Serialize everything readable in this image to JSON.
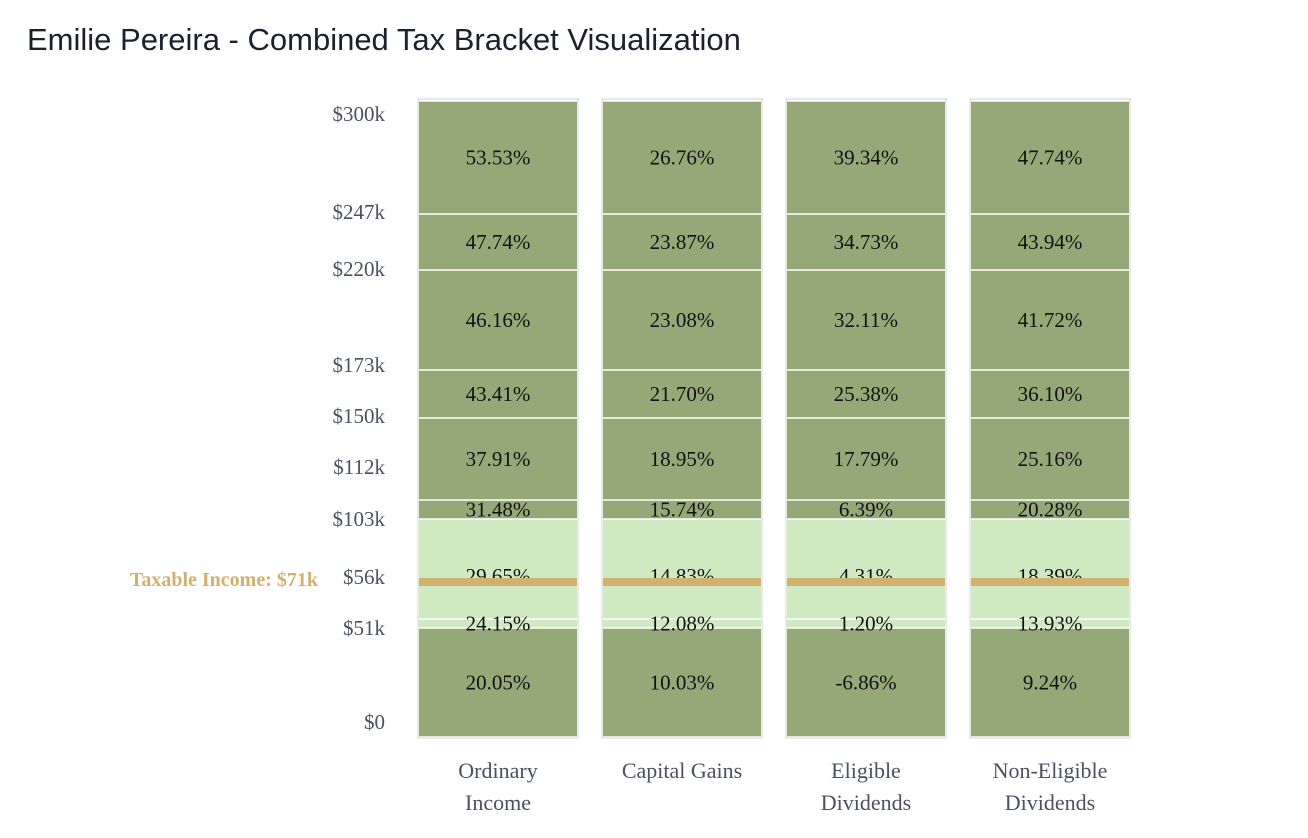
{
  "title": "Emilie Pereira - Combined Tax Bracket Visualization",
  "chart_data": {
    "type": "bar",
    "subtype": "stacked-bracket",
    "categories": [
      "Ordinary Income",
      "Capital Gains",
      "Eligible Dividends",
      "Non-Eligible Dividends"
    ],
    "y_tick_labels": [
      "$0",
      "$51k",
      "$56k",
      "$103k",
      "$112k",
      "$150k",
      "$173k",
      "$220k",
      "$247k",
      "$300k"
    ],
    "bracket_bounds": [
      0,
      51000,
      56000,
      103000,
      112000,
      150000,
      173000,
      220000,
      247000,
      300000
    ],
    "rates": [
      [
        "20.05%",
        "24.15%",
        "29.65%",
        "31.48%",
        "37.91%",
        "43.41%",
        "46.16%",
        "47.74%",
        "53.53%"
      ],
      [
        "10.03%",
        "12.08%",
        "14.83%",
        "15.74%",
        "18.95%",
        "21.70%",
        "23.08%",
        "23.87%",
        "26.76%"
      ],
      [
        "-6.86%",
        "1.20%",
        "4.31%",
        "6.39%",
        "17.79%",
        "25.38%",
        "32.11%",
        "34.73%",
        "39.34%"
      ],
      [
        "9.24%",
        "13.93%",
        "18.39%",
        "20.28%",
        "25.16%",
        "36.10%",
        "41.72%",
        "43.94%",
        "47.74%"
      ]
    ],
    "taxable_income": 71000,
    "taxable_income_label": "Taxable Income: $71k",
    "highlighted_brackets": [
      1,
      2
    ],
    "colors": {
      "bracket": "#94a878",
      "highlight": "#cfe9c0",
      "marker": "#d2b06e",
      "border": "#e2e2e2"
    }
  }
}
